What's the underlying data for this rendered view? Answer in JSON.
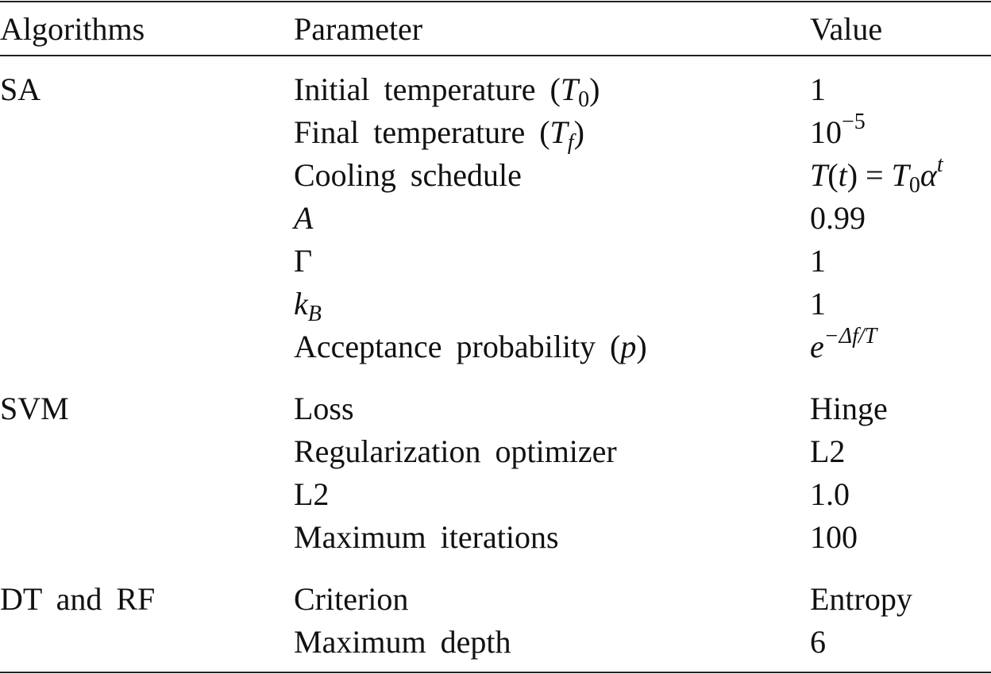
{
  "table": {
    "header": [
      "Algorithms",
      "Parameter",
      "Value"
    ],
    "groups": [
      {
        "algorithm": "SA",
        "rows": [
          {
            "parameter": [
              "Initial temperature (",
              "T",
              "0",
              ")"
            ],
            "value": "1"
          },
          {
            "parameter": [
              "Final temperature (",
              "T",
              "f",
              ")"
            ],
            "value": [
              "10",
              "−5"
            ]
          },
          {
            "parameter": "Cooling schedule",
            "value": [
              "T",
              "(",
              "t",
              ") = ",
              "T",
              "0",
              "α",
              "t"
            ]
          },
          {
            "parameter": "A",
            "value": "0.99"
          },
          {
            "parameter": "Γ",
            "value": "1"
          },
          {
            "parameter": [
              "k",
              "B"
            ],
            "value": "1"
          },
          {
            "parameter": [
              "Acceptance probability (",
              "p",
              ")"
            ],
            "value": [
              "e",
              "−Δf/T"
            ]
          }
        ]
      },
      {
        "algorithm": "SVM",
        "rows": [
          {
            "parameter": "Loss",
            "value": "Hinge"
          },
          {
            "parameter": "Regularization optimizer",
            "value": "L2"
          },
          {
            "parameter": "L2",
            "value": "1.0"
          },
          {
            "parameter": "Maximum iterations",
            "value": "100"
          }
        ]
      },
      {
        "algorithm": "DT and RF",
        "rows": [
          {
            "parameter": "Criterion",
            "value": "Entropy"
          },
          {
            "parameter": "Maximum depth",
            "value": "6"
          }
        ]
      }
    ]
  }
}
